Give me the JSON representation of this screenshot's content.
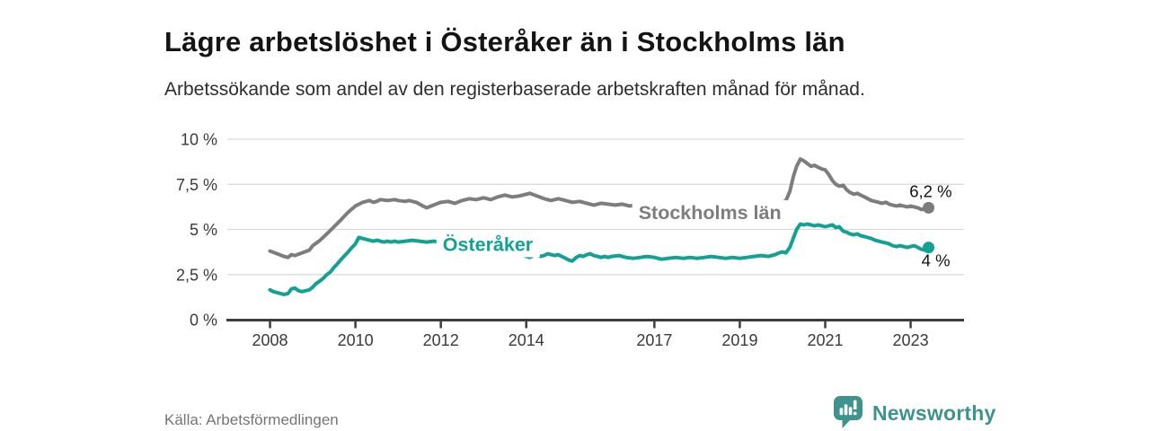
{
  "header": {
    "title": "Lägre arbetslöshet i Österåker än i Stockholms län",
    "subtitle": "Arbetssökande som andel av den registerbaserade arbetskraften månad för månad."
  },
  "footer": {
    "source": "Källa: Arbetsförmedlingen",
    "brand": "Newsworthy",
    "brand_color": "#3e948d"
  },
  "chart_data": {
    "type": "line",
    "title": "Lägre arbetslöshet i Österåker än i Stockholms län",
    "xlabel": "",
    "ylabel": "",
    "unit": "%",
    "grid": "horizontal",
    "xlim": [
      2007.0,
      2024.25
    ],
    "ylim": [
      0,
      10
    ],
    "x_ticks": [
      {
        "x": 2008,
        "label": "2008"
      },
      {
        "x": 2010,
        "label": "2010"
      },
      {
        "x": 2012,
        "label": "2012"
      },
      {
        "x": 2014,
        "label": "2014"
      },
      {
        "x": 2017,
        "label": "2017"
      },
      {
        "x": 2019,
        "label": "2019"
      },
      {
        "x": 2021,
        "label": "2021"
      },
      {
        "x": 2023,
        "label": "2023"
      }
    ],
    "y_ticks": [
      {
        "v": 0,
        "label": "0 %"
      },
      {
        "v": 2.5,
        "label": "2,5 %"
      },
      {
        "v": 5,
        "label": "5 %"
      },
      {
        "v": 7.5,
        "label": "7,5 %"
      },
      {
        "v": 10,
        "label": "10 %"
      }
    ],
    "series": [
      {
        "name": "Stockholms län",
        "color": "#7d7d7d",
        "end_label": "6,2 %",
        "end_value": 6.2,
        "end_label_side": "above",
        "label_anchor": [
          2018.3,
          5.95
        ],
        "data": [
          [
            2008.0,
            3.8
          ],
          [
            2008.17,
            3.65
          ],
          [
            2008.33,
            3.5
          ],
          [
            2008.42,
            3.45
          ],
          [
            2008.5,
            3.6
          ],
          [
            2008.58,
            3.55
          ],
          [
            2008.75,
            3.7
          ],
          [
            2008.92,
            3.85
          ],
          [
            2009.0,
            4.1
          ],
          [
            2009.17,
            4.4
          ],
          [
            2009.33,
            4.75
          ],
          [
            2009.5,
            5.15
          ],
          [
            2009.67,
            5.55
          ],
          [
            2009.83,
            5.95
          ],
          [
            2010.0,
            6.3
          ],
          [
            2010.17,
            6.5
          ],
          [
            2010.25,
            6.55
          ],
          [
            2010.33,
            6.6
          ],
          [
            2010.42,
            6.5
          ],
          [
            2010.5,
            6.55
          ],
          [
            2010.58,
            6.65
          ],
          [
            2010.75,
            6.6
          ],
          [
            2010.92,
            6.65
          ],
          [
            2011.0,
            6.6
          ],
          [
            2011.17,
            6.55
          ],
          [
            2011.25,
            6.6
          ],
          [
            2011.42,
            6.5
          ],
          [
            2011.58,
            6.3
          ],
          [
            2011.67,
            6.2
          ],
          [
            2011.83,
            6.35
          ],
          [
            2012.0,
            6.5
          ],
          [
            2012.17,
            6.55
          ],
          [
            2012.33,
            6.45
          ],
          [
            2012.5,
            6.6
          ],
          [
            2012.67,
            6.7
          ],
          [
            2012.83,
            6.65
          ],
          [
            2013.0,
            6.75
          ],
          [
            2013.17,
            6.65
          ],
          [
            2013.33,
            6.8
          ],
          [
            2013.5,
            6.9
          ],
          [
            2013.67,
            6.8
          ],
          [
            2013.83,
            6.85
          ],
          [
            2014.0,
            6.95
          ],
          [
            2014.08,
            7.0
          ],
          [
            2014.25,
            6.85
          ],
          [
            2014.42,
            6.7
          ],
          [
            2014.58,
            6.6
          ],
          [
            2014.75,
            6.7
          ],
          [
            2014.92,
            6.6
          ],
          [
            2015.08,
            6.5
          ],
          [
            2015.25,
            6.55
          ],
          [
            2015.42,
            6.45
          ],
          [
            2015.58,
            6.35
          ],
          [
            2015.75,
            6.45
          ],
          [
            2015.92,
            6.4
          ],
          [
            2016.08,
            6.35
          ],
          [
            2016.25,
            6.4
          ],
          [
            2016.42,
            6.3
          ],
          [
            2016.58,
            6.35
          ],
          [
            2016.75,
            6.3
          ],
          [
            2016.92,
            6.25
          ],
          [
            2017.08,
            6.3
          ],
          [
            2017.25,
            6.2
          ],
          [
            2017.42,
            6.25
          ],
          [
            2017.58,
            6.15
          ],
          [
            2017.75,
            6.2
          ],
          [
            2017.92,
            6.15
          ],
          [
            2018.08,
            6.1
          ],
          [
            2018.25,
            6.15
          ],
          [
            2018.42,
            6.1
          ],
          [
            2018.58,
            6.15
          ],
          [
            2018.75,
            6.2
          ],
          [
            2018.92,
            6.15
          ],
          [
            2019.08,
            6.2
          ],
          [
            2019.25,
            6.25
          ],
          [
            2019.42,
            6.3
          ],
          [
            2019.58,
            6.35
          ],
          [
            2019.75,
            6.3
          ],
          [
            2019.92,
            6.4
          ],
          [
            2020.0,
            6.5
          ],
          [
            2020.08,
            6.6
          ],
          [
            2020.17,
            7.1
          ],
          [
            2020.25,
            7.9
          ],
          [
            2020.33,
            8.5
          ],
          [
            2020.42,
            8.9
          ],
          [
            2020.5,
            8.8
          ],
          [
            2020.58,
            8.65
          ],
          [
            2020.67,
            8.5
          ],
          [
            2020.75,
            8.55
          ],
          [
            2020.83,
            8.45
          ],
          [
            2020.92,
            8.35
          ],
          [
            2021.0,
            8.3
          ],
          [
            2021.08,
            8.05
          ],
          [
            2021.17,
            7.7
          ],
          [
            2021.25,
            7.5
          ],
          [
            2021.33,
            7.4
          ],
          [
            2021.42,
            7.45
          ],
          [
            2021.5,
            7.2
          ],
          [
            2021.58,
            7.05
          ],
          [
            2021.67,
            6.95
          ],
          [
            2021.75,
            7.0
          ],
          [
            2021.83,
            6.9
          ],
          [
            2021.92,
            6.8
          ],
          [
            2022.0,
            6.7
          ],
          [
            2022.08,
            6.6
          ],
          [
            2022.17,
            6.55
          ],
          [
            2022.25,
            6.5
          ],
          [
            2022.33,
            6.45
          ],
          [
            2022.42,
            6.5
          ],
          [
            2022.5,
            6.4
          ],
          [
            2022.58,
            6.35
          ],
          [
            2022.67,
            6.3
          ],
          [
            2022.75,
            6.35
          ],
          [
            2022.83,
            6.3
          ],
          [
            2022.92,
            6.25
          ],
          [
            2023.0,
            6.3
          ],
          [
            2023.08,
            6.25
          ],
          [
            2023.17,
            6.2
          ],
          [
            2023.25,
            6.1
          ],
          [
            2023.33,
            6.15
          ],
          [
            2023.42,
            6.2
          ]
        ]
      },
      {
        "name": "Österåker",
        "color": "#13a193",
        "end_label": "4 %",
        "end_value": 4.0,
        "end_label_side": "below",
        "label_anchor": [
          2013.1,
          4.18
        ],
        "data": [
          [
            2008.0,
            1.65
          ],
          [
            2008.08,
            1.55
          ],
          [
            2008.17,
            1.5
          ],
          [
            2008.25,
            1.45
          ],
          [
            2008.33,
            1.4
          ],
          [
            2008.42,
            1.45
          ],
          [
            2008.5,
            1.7
          ],
          [
            2008.58,
            1.75
          ],
          [
            2008.67,
            1.6
          ],
          [
            2008.75,
            1.55
          ],
          [
            2008.83,
            1.6
          ],
          [
            2008.92,
            1.65
          ],
          [
            2009.0,
            1.8
          ],
          [
            2009.08,
            2.0
          ],
          [
            2009.17,
            2.15
          ],
          [
            2009.25,
            2.3
          ],
          [
            2009.33,
            2.5
          ],
          [
            2009.42,
            2.65
          ],
          [
            2009.5,
            2.9
          ],
          [
            2009.58,
            3.1
          ],
          [
            2009.67,
            3.35
          ],
          [
            2009.75,
            3.55
          ],
          [
            2009.83,
            3.75
          ],
          [
            2009.92,
            4.0
          ],
          [
            2010.0,
            4.2
          ],
          [
            2010.08,
            4.55
          ],
          [
            2010.17,
            4.5
          ],
          [
            2010.25,
            4.45
          ],
          [
            2010.33,
            4.4
          ],
          [
            2010.42,
            4.35
          ],
          [
            2010.5,
            4.4
          ],
          [
            2010.58,
            4.35
          ],
          [
            2010.67,
            4.3
          ],
          [
            2010.75,
            4.35
          ],
          [
            2010.83,
            4.3
          ],
          [
            2010.92,
            4.35
          ],
          [
            2011.0,
            4.3
          ],
          [
            2011.17,
            4.35
          ],
          [
            2011.33,
            4.4
          ],
          [
            2011.5,
            4.35
          ],
          [
            2011.67,
            4.3
          ],
          [
            2011.83,
            4.35
          ],
          [
            2012.0,
            4.3
          ],
          [
            2012.17,
            4.25
          ],
          [
            2012.33,
            4.3
          ],
          [
            2012.5,
            4.2
          ],
          [
            2012.67,
            4.15
          ],
          [
            2012.83,
            4.1
          ],
          [
            2013.0,
            4.05
          ],
          [
            2013.17,
            4.0
          ],
          [
            2013.33,
            3.95
          ],
          [
            2013.5,
            3.85
          ],
          [
            2013.67,
            3.75
          ],
          [
            2013.83,
            3.65
          ],
          [
            2014.0,
            3.5
          ],
          [
            2014.08,
            3.45
          ],
          [
            2014.17,
            3.55
          ],
          [
            2014.25,
            3.6
          ],
          [
            2014.33,
            3.5
          ],
          [
            2014.42,
            3.55
          ],
          [
            2014.5,
            3.65
          ],
          [
            2014.58,
            3.6
          ],
          [
            2014.67,
            3.55
          ],
          [
            2014.75,
            3.6
          ],
          [
            2014.83,
            3.5
          ],
          [
            2014.92,
            3.4
          ],
          [
            2015.0,
            3.3
          ],
          [
            2015.08,
            3.25
          ],
          [
            2015.17,
            3.45
          ],
          [
            2015.25,
            3.55
          ],
          [
            2015.33,
            3.5
          ],
          [
            2015.42,
            3.6
          ],
          [
            2015.5,
            3.65
          ],
          [
            2015.58,
            3.55
          ],
          [
            2015.67,
            3.5
          ],
          [
            2015.75,
            3.45
          ],
          [
            2015.83,
            3.5
          ],
          [
            2015.92,
            3.45
          ],
          [
            2016.0,
            3.5
          ],
          [
            2016.17,
            3.55
          ],
          [
            2016.33,
            3.45
          ],
          [
            2016.5,
            3.4
          ],
          [
            2016.67,
            3.45
          ],
          [
            2016.83,
            3.5
          ],
          [
            2017.0,
            3.45
          ],
          [
            2017.17,
            3.35
          ],
          [
            2017.33,
            3.4
          ],
          [
            2017.5,
            3.45
          ],
          [
            2017.67,
            3.4
          ],
          [
            2017.83,
            3.45
          ],
          [
            2018.0,
            3.4
          ],
          [
            2018.17,
            3.45
          ],
          [
            2018.33,
            3.5
          ],
          [
            2018.5,
            3.45
          ],
          [
            2018.67,
            3.4
          ],
          [
            2018.83,
            3.45
          ],
          [
            2019.0,
            3.4
          ],
          [
            2019.17,
            3.45
          ],
          [
            2019.33,
            3.5
          ],
          [
            2019.5,
            3.55
          ],
          [
            2019.67,
            3.5
          ],
          [
            2019.83,
            3.6
          ],
          [
            2019.92,
            3.7
          ],
          [
            2020.0,
            3.75
          ],
          [
            2020.08,
            3.7
          ],
          [
            2020.17,
            4.0
          ],
          [
            2020.25,
            4.5
          ],
          [
            2020.33,
            5.0
          ],
          [
            2020.42,
            5.3
          ],
          [
            2020.5,
            5.25
          ],
          [
            2020.58,
            5.3
          ],
          [
            2020.67,
            5.25
          ],
          [
            2020.75,
            5.2
          ],
          [
            2020.83,
            5.25
          ],
          [
            2020.92,
            5.2
          ],
          [
            2021.0,
            5.15
          ],
          [
            2021.08,
            5.2
          ],
          [
            2021.17,
            5.25
          ],
          [
            2021.25,
            5.1
          ],
          [
            2021.33,
            5.15
          ],
          [
            2021.42,
            4.9
          ],
          [
            2021.5,
            4.85
          ],
          [
            2021.58,
            4.75
          ],
          [
            2021.67,
            4.7
          ],
          [
            2021.75,
            4.75
          ],
          [
            2021.83,
            4.65
          ],
          [
            2021.92,
            4.6
          ],
          [
            2022.0,
            4.55
          ],
          [
            2022.08,
            4.5
          ],
          [
            2022.17,
            4.4
          ],
          [
            2022.25,
            4.35
          ],
          [
            2022.33,
            4.3
          ],
          [
            2022.42,
            4.25
          ],
          [
            2022.5,
            4.2
          ],
          [
            2022.58,
            4.1
          ],
          [
            2022.67,
            4.05
          ],
          [
            2022.75,
            4.1
          ],
          [
            2022.83,
            4.05
          ],
          [
            2022.92,
            4.0
          ],
          [
            2023.0,
            4.05
          ],
          [
            2023.08,
            4.1
          ],
          [
            2023.17,
            4.0
          ],
          [
            2023.25,
            3.9
          ],
          [
            2023.33,
            3.85
          ],
          [
            2023.42,
            4.0
          ]
        ]
      }
    ]
  }
}
